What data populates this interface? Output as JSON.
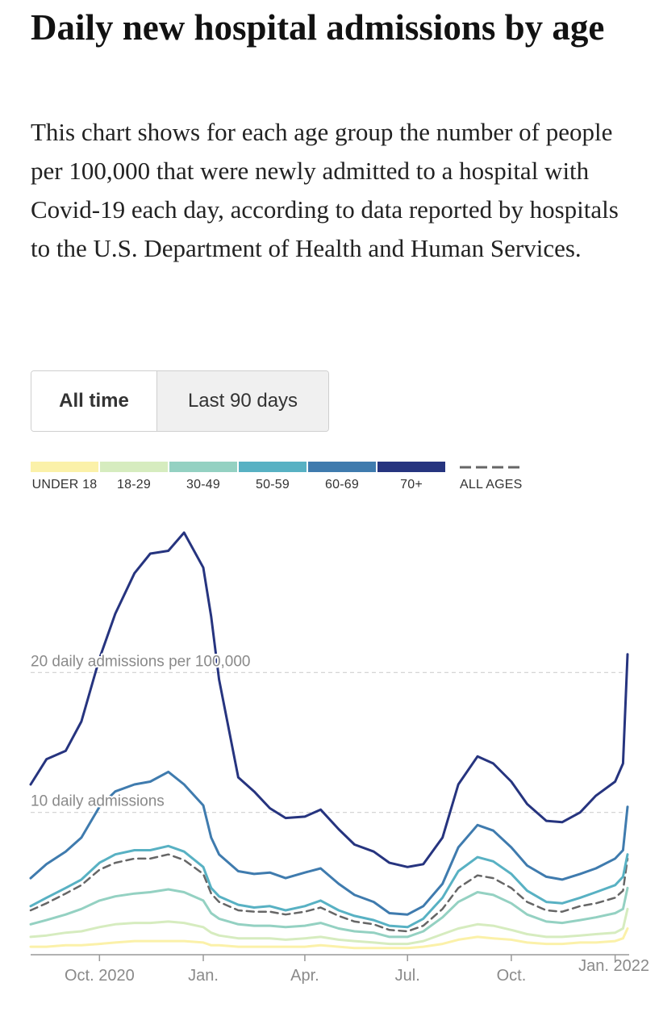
{
  "title": "Daily new hospital admissions by age",
  "description": "This chart shows for each age group the number of people per 100,000 that were newly admitted to a hospital with Covid-19 each day, according to data reported by hospitals to the U.S. Department of Health and Human Services.",
  "toggle": {
    "options": [
      "All time",
      "Last 90 days"
    ],
    "selected": "All time"
  },
  "legend": [
    {
      "label": "UNDER 18",
      "color": "#fbf1a9"
    },
    {
      "label": "18-29",
      "color": "#d6ecbf"
    },
    {
      "label": "30-49",
      "color": "#94d1c2"
    },
    {
      "label": "50-59",
      "color": "#58b1c3"
    },
    {
      "label": "60-69",
      "color": "#3f7bae"
    },
    {
      "label": "70+",
      "color": "#26347f"
    },
    {
      "label": "ALL AGES",
      "color": "#666666",
      "style": "dashed"
    }
  ],
  "chart_data": {
    "type": "line",
    "ylabel_ticks": [
      {
        "value": 20,
        "label": "20 daily admissions per 100,000"
      },
      {
        "value": 10,
        "label": "10 daily admissions"
      }
    ],
    "x_ticks": [
      {
        "x": "2020-10-01",
        "label": "Oct. 2020"
      },
      {
        "x": "2021-01-01",
        "label": "Jan."
      },
      {
        "x": "2021-04-01",
        "label": "Apr."
      },
      {
        "x": "2021-07-01",
        "label": "Jul."
      },
      {
        "x": "2021-10-01",
        "label": "Oct."
      },
      {
        "x": "2022-01-01",
        "label": "Jan. 2022"
      }
    ],
    "xlim": [
      "2020-08-01",
      "2022-01-12"
    ],
    "ylim": [
      0,
      30
    ],
    "grid": "dashed horizontal lines at labeled values",
    "x": [
      "2020-08-01",
      "2020-08-15",
      "2020-09-01",
      "2020-09-15",
      "2020-10-01",
      "2020-10-15",
      "2020-11-01",
      "2020-11-15",
      "2020-12-01",
      "2020-12-15",
      "2021-01-01",
      "2021-01-08",
      "2021-01-15",
      "2021-02-01",
      "2021-02-15",
      "2021-03-01",
      "2021-03-15",
      "2021-04-01",
      "2021-04-15",
      "2021-05-01",
      "2021-05-15",
      "2021-06-01",
      "2021-06-15",
      "2021-07-01",
      "2021-07-15",
      "2021-08-01",
      "2021-08-15",
      "2021-09-01",
      "2021-09-15",
      "2021-10-01",
      "2021-10-15",
      "2021-11-01",
      "2021-11-15",
      "2021-12-01",
      "2021-12-15",
      "2022-01-01",
      "2022-01-08",
      "2022-01-12"
    ],
    "series": [
      {
        "name": "70+",
        "color": "#26347f",
        "values": [
          12.0,
          13.8,
          14.4,
          16.5,
          21.0,
          24.2,
          27.1,
          28.5,
          28.7,
          30.0,
          27.5,
          24.0,
          19.5,
          12.5,
          11.5,
          10.3,
          9.6,
          9.7,
          10.2,
          8.8,
          7.7,
          7.2,
          6.4,
          6.1,
          6.3,
          8.2,
          12.0,
          14.0,
          13.5,
          12.2,
          10.6,
          9.4,
          9.3,
          10.0,
          11.2,
          12.2,
          13.5,
          21.3
        ]
      },
      {
        "name": "60-69",
        "color": "#3f7bae",
        "values": [
          5.3,
          6.3,
          7.2,
          8.2,
          10.4,
          11.5,
          12.0,
          12.2,
          12.9,
          12.0,
          10.5,
          8.2,
          7.0,
          5.8,
          5.6,
          5.7,
          5.3,
          5.7,
          6.0,
          4.9,
          4.1,
          3.6,
          2.8,
          2.7,
          3.3,
          4.9,
          7.5,
          9.1,
          8.7,
          7.5,
          6.2,
          5.4,
          5.2,
          5.6,
          6.0,
          6.7,
          7.3,
          10.4
        ]
      },
      {
        "name": "50-59",
        "color": "#58b1c3",
        "values": [
          3.3,
          3.9,
          4.6,
          5.2,
          6.4,
          7.0,
          7.3,
          7.3,
          7.6,
          7.2,
          6.1,
          4.6,
          4.0,
          3.4,
          3.2,
          3.3,
          3.0,
          3.3,
          3.7,
          3.0,
          2.6,
          2.3,
          1.9,
          1.8,
          2.4,
          3.9,
          5.8,
          6.8,
          6.5,
          5.6,
          4.4,
          3.6,
          3.5,
          3.9,
          4.3,
          4.8,
          5.4,
          7.0
        ]
      },
      {
        "name": "ALL AGES",
        "color": "#666666",
        "dashed": true,
        "values": [
          3.0,
          3.5,
          4.2,
          4.8,
          5.9,
          6.4,
          6.7,
          6.7,
          7.0,
          6.6,
          5.6,
          4.2,
          3.6,
          3.0,
          2.9,
          2.9,
          2.7,
          2.9,
          3.2,
          2.6,
          2.2,
          2.0,
          1.6,
          1.5,
          1.9,
          3.1,
          4.6,
          5.5,
          5.3,
          4.6,
          3.6,
          3.0,
          2.9,
          3.3,
          3.5,
          3.9,
          4.4,
          6.7
        ]
      },
      {
        "name": "30-49",
        "color": "#94d1c2",
        "values": [
          2.0,
          2.3,
          2.7,
          3.1,
          3.7,
          4.0,
          4.2,
          4.3,
          4.5,
          4.3,
          3.7,
          2.8,
          2.4,
          2.0,
          1.9,
          1.9,
          1.8,
          1.9,
          2.1,
          1.7,
          1.5,
          1.4,
          1.1,
          1.1,
          1.5,
          2.5,
          3.6,
          4.3,
          4.1,
          3.5,
          2.7,
          2.2,
          2.1,
          2.3,
          2.5,
          2.8,
          3.1,
          4.6
        ]
      },
      {
        "name": "18-29",
        "color": "#d6ecbf",
        "values": [
          1.1,
          1.2,
          1.4,
          1.5,
          1.8,
          2.0,
          2.1,
          2.1,
          2.2,
          2.1,
          1.8,
          1.4,
          1.2,
          1.0,
          1.0,
          1.0,
          0.9,
          1.0,
          1.1,
          0.9,
          0.8,
          0.7,
          0.6,
          0.6,
          0.8,
          1.3,
          1.7,
          2.0,
          1.9,
          1.6,
          1.3,
          1.1,
          1.1,
          1.2,
          1.3,
          1.4,
          1.7,
          3.1
        ]
      },
      {
        "name": "UNDER 18",
        "color": "#fbf1a9",
        "values": [
          0.4,
          0.4,
          0.5,
          0.5,
          0.6,
          0.7,
          0.8,
          0.8,
          0.8,
          0.8,
          0.7,
          0.5,
          0.5,
          0.4,
          0.4,
          0.4,
          0.4,
          0.4,
          0.5,
          0.4,
          0.3,
          0.3,
          0.3,
          0.3,
          0.4,
          0.6,
          0.9,
          1.1,
          1.0,
          0.9,
          0.7,
          0.6,
          0.6,
          0.7,
          0.7,
          0.8,
          1.0,
          1.7
        ]
      }
    ]
  }
}
